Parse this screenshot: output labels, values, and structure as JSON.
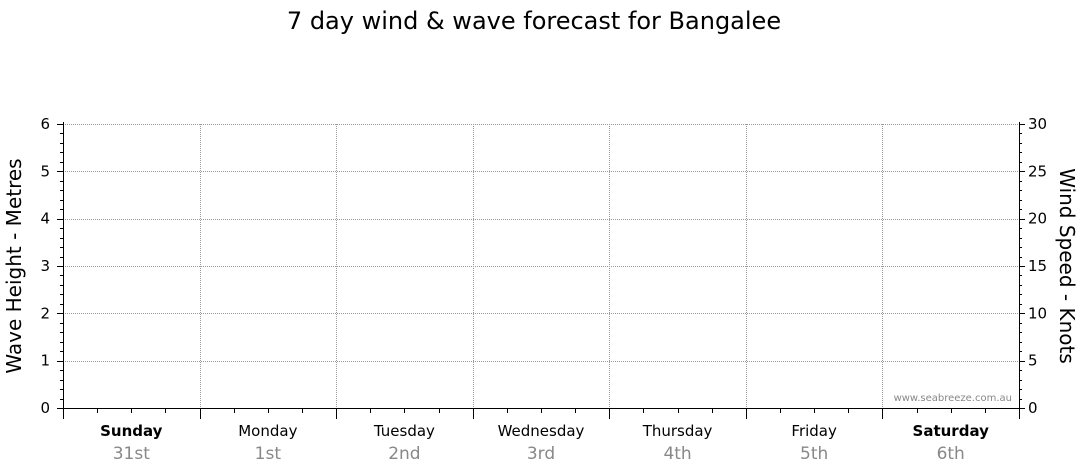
{
  "chart_data": {
    "type": "line",
    "title": "7 day wind & wave forecast for Bangalee",
    "ylabel_left": "Wave Height - Metres",
    "ylabel_right": "Wind Speed - Knots",
    "ylim_left": [
      0,
      6
    ],
    "ylim_right": [
      0,
      30
    ],
    "yticks_left": [
      "0",
      "1",
      "2",
      "3",
      "4",
      "5",
      "6"
    ],
    "yticks_right": [
      "0",
      "5",
      "10",
      "15",
      "20",
      "25",
      "30"
    ],
    "categories": [
      {
        "day": "Sunday",
        "date": "31st",
        "bold": true
      },
      {
        "day": "Monday",
        "date": "1st",
        "bold": false
      },
      {
        "day": "Tuesday",
        "date": "2nd",
        "bold": false
      },
      {
        "day": "Wednesday",
        "date": "3rd",
        "bold": false
      },
      {
        "day": "Thursday",
        "date": "4th",
        "bold": false
      },
      {
        "day": "Friday",
        "date": "5th",
        "bold": false
      },
      {
        "day": "Saturday",
        "date": "6th",
        "bold": true
      }
    ],
    "series": [],
    "grid": true,
    "credit": "www.seabreeze.com.au"
  }
}
